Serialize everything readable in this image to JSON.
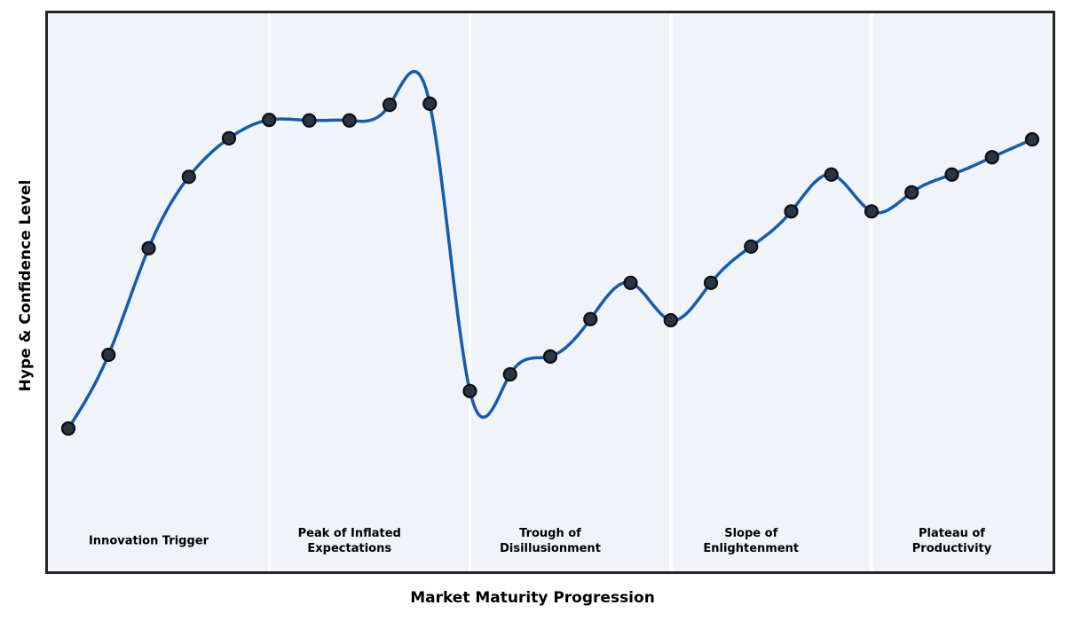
{
  "figure": {
    "x_axis_label": "Market Maturity Progression",
    "y_axis_label": "Hype & Confidence Level"
  },
  "phases": [
    {
      "label": "Innovation Trigger"
    },
    {
      "label": "Peak of Inflated\nExpectations"
    },
    {
      "label": "Trough of\nDisillusionment"
    },
    {
      "label": "Slope of\nEnlightenment"
    },
    {
      "label": "Plateau of\nProductivity"
    }
  ],
  "chart_data": {
    "type": "line",
    "smoothed": true,
    "title": "",
    "xlabel": "Market Maturity Progression",
    "ylabel": "Hype & Confidence Level",
    "grid": false,
    "legend": "none",
    "xlim": [
      0.5,
      25.5
    ],
    "ylim": [
      0,
      100
    ],
    "x": [
      1,
      2,
      3,
      4,
      5,
      6,
      7,
      8,
      9,
      10,
      11,
      12,
      13,
      14,
      15,
      16,
      17,
      18,
      19,
      20,
      21,
      22,
      23,
      24,
      25
    ],
    "values": [
      25.6,
      38.8,
      57.9,
      70.7,
      77.6,
      80.9,
      80.8,
      80.8,
      83.6,
      83.8,
      32.3,
      35.3,
      38.5,
      45.2,
      51.7,
      45.0,
      51.7,
      58.2,
      64.5,
      71.1,
      64.5,
      67.9,
      71.1,
      74.2,
      77.4
    ],
    "phase_boundaries_x": [
      6,
      11,
      16,
      21
    ],
    "phase_label_center_x": [
      3,
      8,
      13,
      18,
      23
    ],
    "colors": {
      "line": "#155cac",
      "marker_fill": "#2b3442",
      "marker_edge": "#0a0d12",
      "plot_background": "#f0f4f8",
      "phase_divider": "#ffffff",
      "frame": "#252525",
      "text": "#000000",
      "figure_background": "#ffffff"
    }
  }
}
